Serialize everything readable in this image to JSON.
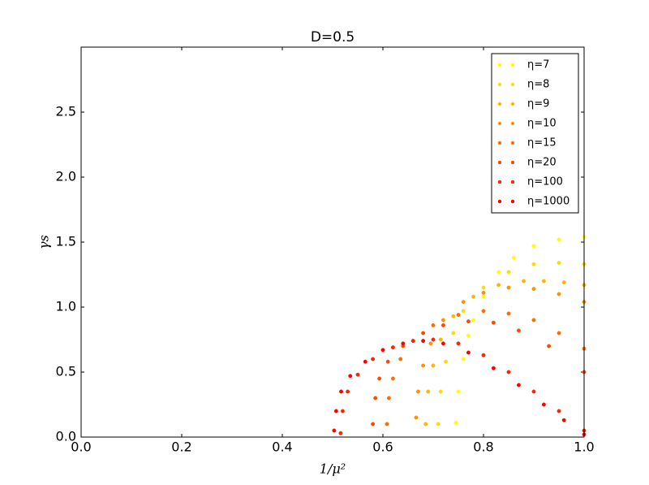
{
  "chart_data": {
    "type": "scatter",
    "title": "D=0.5",
    "x_label": "1/μ²",
    "y_label": "γs",
    "xlim": [
      0,
      1
    ],
    "ylim": [
      0,
      3
    ],
    "xticks": [
      {
        "value": 0,
        "label": "0.0"
      },
      {
        "value": 0.2,
        "label": "0.2"
      },
      {
        "value": 0.4,
        "label": "0.4"
      },
      {
        "value": 0.6,
        "label": "0.6"
      },
      {
        "value": 0.8,
        "label": "0.8"
      },
      {
        "value": 1,
        "label": "1.0"
      }
    ],
    "yticks": [
      {
        "value": 0,
        "label": "0.0"
      },
      {
        "value": 0.5,
        "label": "0.5"
      },
      {
        "value": 1,
        "label": "1.0"
      },
      {
        "value": 1.5,
        "label": "1.5"
      },
      {
        "value": 2,
        "label": "2.0"
      },
      {
        "value": 2.5,
        "label": "2.5"
      }
    ],
    "legend": "upper right",
    "series": [
      {
        "name": "η=7",
        "color": "#ffff00",
        "x": [
          0.745,
          0.75,
          0.76,
          0.77,
          0.78,
          0.8,
          0.83,
          0.86,
          0.9,
          0.95,
          1.0
        ],
        "values": [
          0.11,
          0.35,
          0.6,
          0.78,
          0.9,
          1.08,
          1.27,
          1.38,
          1.47,
          1.52,
          1.54
        ]
      },
      {
        "name": "η=8",
        "color": "#ffdb00",
        "x": [
          0.71,
          0.715,
          0.725,
          0.74,
          0.76,
          0.8,
          0.85,
          0.9,
          0.95,
          1.0
        ],
        "values": [
          0.1,
          0.35,
          0.58,
          0.8,
          0.97,
          1.15,
          1.27,
          1.33,
          1.34,
          1.33
        ]
      },
      {
        "name": "η=9",
        "color": "#ffb600",
        "x": [
          0.685,
          0.69,
          0.7,
          0.715,
          0.74,
          0.78,
          0.83,
          0.88,
          0.92,
          0.96,
          1.0
        ],
        "values": [
          0.1,
          0.35,
          0.55,
          0.75,
          0.93,
          1.08,
          1.17,
          1.2,
          1.2,
          1.19,
          1.17
        ]
      },
      {
        "name": "η=10",
        "color": "#ff9200",
        "x": [
          0.666,
          0.67,
          0.68,
          0.695,
          0.72,
          0.76,
          0.8,
          0.85,
          0.9,
          0.95,
          1.0
        ],
        "values": [
          0.15,
          0.35,
          0.55,
          0.72,
          0.9,
          1.04,
          1.11,
          1.15,
          1.14,
          1.1,
          1.04
        ]
      },
      {
        "name": "η=15",
        "color": "#ff6d00",
        "x": [
          0.608,
          0.612,
          0.62,
          0.635,
          0.66,
          0.7,
          0.75,
          0.8,
          0.85,
          0.9,
          0.95,
          1.0
        ],
        "values": [
          0.1,
          0.3,
          0.45,
          0.6,
          0.74,
          0.86,
          0.94,
          0.97,
          0.95,
          0.9,
          0.8,
          0.68
        ]
      },
      {
        "name": "η=20",
        "color": "#ff4900",
        "x": [
          0.58,
          0.585,
          0.593,
          0.61,
          0.64,
          0.68,
          0.72,
          0.77,
          0.82,
          0.87,
          0.93,
          1.0
        ],
        "values": [
          0.1,
          0.3,
          0.45,
          0.58,
          0.7,
          0.8,
          0.86,
          0.89,
          0.88,
          0.82,
          0.7,
          0.5
        ]
      },
      {
        "name": "η=100",
        "color": "#ff2400",
        "x": [
          0.516,
          0.52,
          0.53,
          0.55,
          0.58,
          0.62,
          0.66,
          0.7,
          0.75,
          0.8,
          0.85,
          0.9,
          0.95,
          1.0
        ],
        "values": [
          0.03,
          0.2,
          0.35,
          0.48,
          0.6,
          0.69,
          0.74,
          0.75,
          0.72,
          0.63,
          0.5,
          0.35,
          0.2,
          0.05
        ]
      },
      {
        "name": "η=1000",
        "color": "#ff0000",
        "x": [
          0.503,
          0.507,
          0.517,
          0.535,
          0.565,
          0.6,
          0.64,
          0.68,
          0.72,
          0.77,
          0.82,
          0.87,
          0.92,
          0.96,
          1.0
        ],
        "values": [
          0.05,
          0.2,
          0.35,
          0.47,
          0.58,
          0.67,
          0.72,
          0.74,
          0.72,
          0.65,
          0.53,
          0.4,
          0.25,
          0.13,
          0.02
        ]
      }
    ]
  }
}
